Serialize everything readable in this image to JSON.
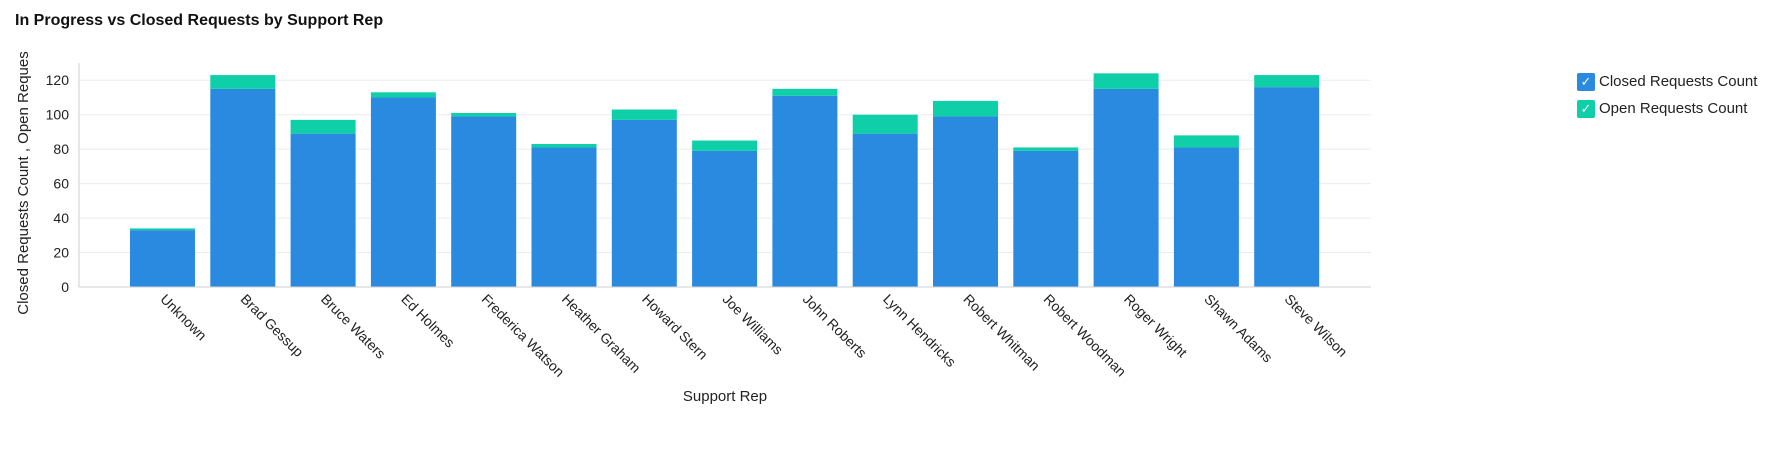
{
  "chart_data": {
    "type": "bar",
    "stacked": true,
    "title": "In Progress vs Closed Requests by Support Rep",
    "xlabel": "Support Rep",
    "ylabel": "Closed Requests Count , Open Reques",
    "ylim": [
      0,
      130
    ],
    "yticks": [
      0,
      20,
      40,
      60,
      80,
      100,
      120
    ],
    "grid": true,
    "legend_position": "top-right",
    "categories": [
      "Unknown",
      "Brad Gessup",
      "Bruce Waters",
      "Ed Holmes",
      "Frederica Watson",
      "Heather Graham",
      "Howard Stern",
      "Joe Williams",
      "John Roberts",
      "Lynn Hendricks",
      "Robert Whitman",
      "Robert Woodman",
      "Roger Wright",
      "Shawn Adams",
      "Steve Wilson"
    ],
    "series": [
      {
        "name": "Closed Requests Count",
        "color": "#2a8ae0",
        "values": [
          33,
          115,
          89,
          110,
          99,
          81,
          97,
          79,
          111,
          89,
          99,
          79,
          115,
          81,
          116
        ]
      },
      {
        "name": "Open Requests Count",
        "color": "#0fcfa8",
        "values": [
          1,
          8,
          8,
          3,
          2,
          2,
          6,
          6,
          4,
          11,
          9,
          2,
          9,
          7,
          7
        ]
      }
    ]
  },
  "legend": {
    "items": [
      {
        "label": "Closed Requests Count",
        "color": "#2a8ae0",
        "check": "✓"
      },
      {
        "label": "Open Requests Count",
        "color": "#0fcfa8",
        "check": "✓"
      }
    ]
  }
}
